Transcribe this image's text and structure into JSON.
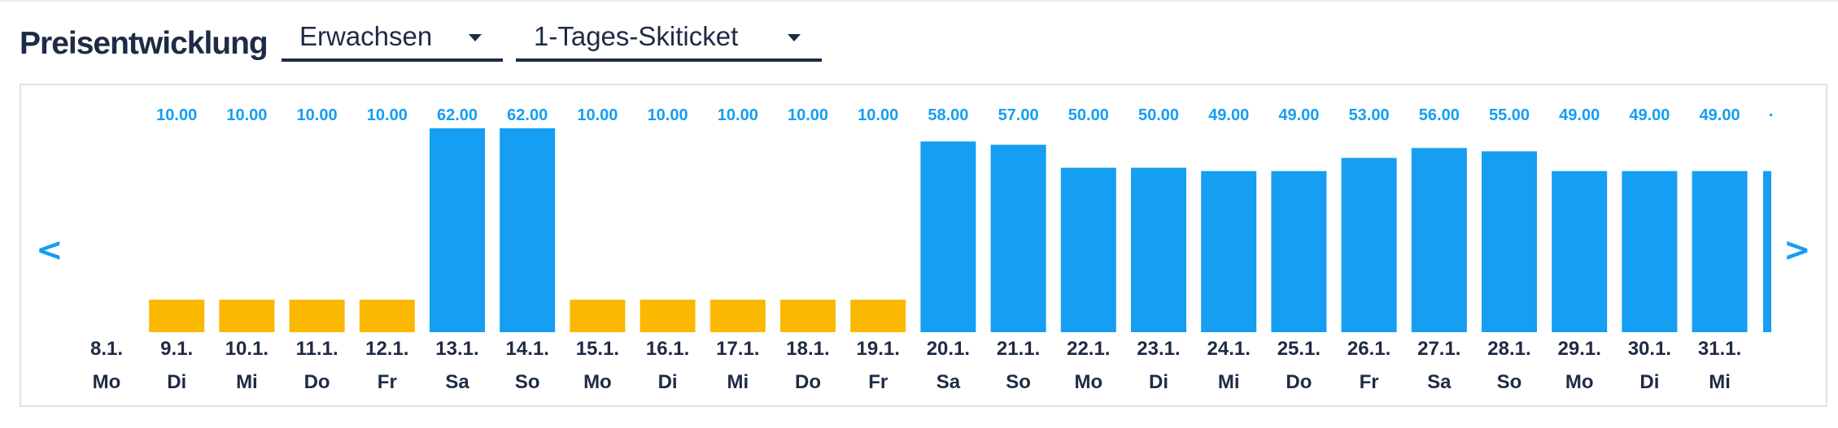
{
  "header": {
    "title": "Preisentwicklung",
    "age_select": "Erwachsen",
    "ticket_select": "1-Tages-Skiticket"
  },
  "nav": {
    "prev": "<",
    "next": ">"
  },
  "colors": {
    "high": "#159ef2",
    "low": "#fbb800",
    "text": "#1e2b45"
  },
  "chart_data": {
    "type": "bar",
    "categories": [
      "8.1.",
      "9.1.",
      "10.1.",
      "11.1.",
      "12.1.",
      "13.1.",
      "14.1.",
      "15.1.",
      "16.1.",
      "17.1.",
      "18.1.",
      "19.1.",
      "20.1.",
      "21.1.",
      "22.1.",
      "23.1.",
      "24.1.",
      "25.1.",
      "26.1.",
      "27.1.",
      "28.1.",
      "29.1.",
      "30.1.",
      "31.1."
    ],
    "weekdays": [
      "Mo",
      "Di",
      "Mi",
      "Do",
      "Fr",
      "Sa",
      "So",
      "Mo",
      "Di",
      "Mi",
      "Do",
      "Fr",
      "Sa",
      "So",
      "Mo",
      "Di",
      "Mi",
      "Do",
      "Fr",
      "Sa",
      "So",
      "Mo",
      "Di",
      "Mi"
    ],
    "values": [
      null,
      10.0,
      10.0,
      10.0,
      10.0,
      62.0,
      62.0,
      10.0,
      10.0,
      10.0,
      10.0,
      10.0,
      58.0,
      57.0,
      50.0,
      50.0,
      49.0,
      49.0,
      53.0,
      56.0,
      55.0,
      49.0,
      49.0,
      49.0
    ],
    "value_labels": [
      "",
      "10.00",
      "10.00",
      "10.00",
      "10.00",
      "62.00",
      "62.00",
      "10.00",
      "10.00",
      "10.00",
      "10.00",
      "10.00",
      "58.00",
      "57.00",
      "50.00",
      "50.00",
      "49.00",
      "49.00",
      "53.00",
      "56.00",
      "55.00",
      "49.00",
      "49.00",
      "49.00"
    ],
    "bar_colors": [
      "",
      "low",
      "low",
      "low",
      "low",
      "high",
      "high",
      "low",
      "low",
      "low",
      "low",
      "low",
      "high",
      "high",
      "high",
      "high",
      "high",
      "high",
      "high",
      "high",
      "high",
      "high",
      "high",
      "high"
    ],
    "ylim": [
      0,
      62
    ],
    "grid": false,
    "partial_next_bar": {
      "value": 49.0,
      "color": "high"
    }
  }
}
